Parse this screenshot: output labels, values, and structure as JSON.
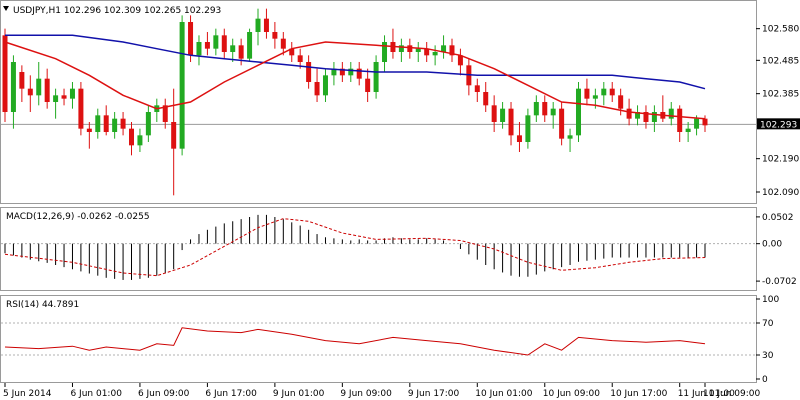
{
  "header": {
    "symbol_line": "USDJPY,H1  102.296 102.309 102.265 102.293",
    "dropdown_icon": "triangle-down-icon"
  },
  "colors": {
    "bull": "#22aa22",
    "bear": "#dd1111",
    "ma_fast": "#dd1111",
    "ma_slow": "#1111aa",
    "macd_signal": "#cc0000",
    "rsi_line": "#cc0000",
    "grid": "#9a9a9a",
    "last_price_bg": "#000000"
  },
  "price_axis": {
    "ticks": [
      "102.580",
      "102.485",
      "102.385",
      "102.190",
      "102.090"
    ],
    "last_price": "102.293"
  },
  "macd": {
    "label": "MACD(12,26,9) -0.0262 -0.0255",
    "ticks": [
      "0.0502",
      "0.00",
      "-0.0702"
    ]
  },
  "rsi": {
    "label": "RSI(14) 44.7891",
    "ticks": [
      "100",
      "70",
      "30",
      "0"
    ]
  },
  "time_axis": {
    "labels": [
      "5 Jun 2014",
      "6 Jun 01:00",
      "6 Jun 09:00",
      "6 Jun 17:00",
      "9 Jun 01:00",
      "9 Jun 09:00",
      "9 Jun 17:00",
      "10 Jun 01:00",
      "10 Jun 09:00",
      "10 Jun 17:00",
      "11 Jun 01:00",
      "11 Jun 09:00"
    ]
  },
  "chart_data": {
    "type": "candlestick",
    "symbol": "USDJPY",
    "timeframe": "H1",
    "last": 102.293,
    "ylim": [
      102.06,
      102.66
    ],
    "candles": [
      {
        "o": 102.56,
        "h": 102.58,
        "l": 102.3,
        "c": 102.33
      },
      {
        "o": 102.33,
        "h": 102.5,
        "l": 102.28,
        "c": 102.48
      },
      {
        "o": 102.45,
        "h": 102.47,
        "l": 102.36,
        "c": 102.4
      },
      {
        "o": 102.4,
        "h": 102.44,
        "l": 102.33,
        "c": 102.38
      },
      {
        "o": 102.38,
        "h": 102.48,
        "l": 102.35,
        "c": 102.43
      },
      {
        "o": 102.43,
        "h": 102.46,
        "l": 102.34,
        "c": 102.36
      },
      {
        "o": 102.36,
        "h": 102.4,
        "l": 102.31,
        "c": 102.38
      },
      {
        "o": 102.38,
        "h": 102.4,
        "l": 102.35,
        "c": 102.37
      },
      {
        "o": 102.37,
        "h": 102.42,
        "l": 102.34,
        "c": 102.4
      },
      {
        "o": 102.4,
        "h": 102.42,
        "l": 102.26,
        "c": 102.28
      },
      {
        "o": 102.28,
        "h": 102.3,
        "l": 102.22,
        "c": 102.27
      },
      {
        "o": 102.27,
        "h": 102.34,
        "l": 102.25,
        "c": 102.32
      },
      {
        "o": 102.32,
        "h": 102.35,
        "l": 102.26,
        "c": 102.27
      },
      {
        "o": 102.27,
        "h": 102.33,
        "l": 102.25,
        "c": 102.31
      },
      {
        "o": 102.31,
        "h": 102.33,
        "l": 102.26,
        "c": 102.28
      },
      {
        "o": 102.28,
        "h": 102.3,
        "l": 102.2,
        "c": 102.23
      },
      {
        "o": 102.23,
        "h": 102.28,
        "l": 102.21,
        "c": 102.26
      },
      {
        "o": 102.26,
        "h": 102.35,
        "l": 102.24,
        "c": 102.33
      },
      {
        "o": 102.33,
        "h": 102.37,
        "l": 102.3,
        "c": 102.35
      },
      {
        "o": 102.35,
        "h": 102.37,
        "l": 102.28,
        "c": 102.3
      },
      {
        "o": 102.3,
        "h": 102.4,
        "l": 102.08,
        "c": 102.22
      },
      {
        "o": 102.22,
        "h": 102.62,
        "l": 102.2,
        "c": 102.6
      },
      {
        "o": 102.6,
        "h": 102.62,
        "l": 102.48,
        "c": 102.5
      },
      {
        "o": 102.5,
        "h": 102.56,
        "l": 102.47,
        "c": 102.54
      },
      {
        "o": 102.54,
        "h": 102.57,
        "l": 102.5,
        "c": 102.52
      },
      {
        "o": 102.52,
        "h": 102.58,
        "l": 102.5,
        "c": 102.56
      },
      {
        "o": 102.56,
        "h": 102.58,
        "l": 102.49,
        "c": 102.51
      },
      {
        "o": 102.51,
        "h": 102.55,
        "l": 102.48,
        "c": 102.53
      },
      {
        "o": 102.53,
        "h": 102.55,
        "l": 102.47,
        "c": 102.49
      },
      {
        "o": 102.49,
        "h": 102.58,
        "l": 102.48,
        "c": 102.57
      },
      {
        "o": 102.57,
        "h": 102.64,
        "l": 102.53,
        "c": 102.61
      },
      {
        "o": 102.61,
        "h": 102.64,
        "l": 102.55,
        "c": 102.57
      },
      {
        "o": 102.57,
        "h": 102.6,
        "l": 102.52,
        "c": 102.55
      },
      {
        "o": 102.55,
        "h": 102.57,
        "l": 102.5,
        "c": 102.52
      },
      {
        "o": 102.52,
        "h": 102.54,
        "l": 102.48,
        "c": 102.5
      },
      {
        "o": 102.5,
        "h": 102.52,
        "l": 102.46,
        "c": 102.48
      },
      {
        "o": 102.48,
        "h": 102.5,
        "l": 102.4,
        "c": 102.42
      },
      {
        "o": 102.42,
        "h": 102.46,
        "l": 102.36,
        "c": 102.38
      },
      {
        "o": 102.38,
        "h": 102.46,
        "l": 102.36,
        "c": 102.44
      },
      {
        "o": 102.44,
        "h": 102.48,
        "l": 102.41,
        "c": 102.46
      },
      {
        "o": 102.46,
        "h": 102.48,
        "l": 102.42,
        "c": 102.44
      },
      {
        "o": 102.44,
        "h": 102.48,
        "l": 102.42,
        "c": 102.46
      },
      {
        "o": 102.46,
        "h": 102.48,
        "l": 102.41,
        "c": 102.43
      },
      {
        "o": 102.43,
        "h": 102.46,
        "l": 102.36,
        "c": 102.39
      },
      {
        "o": 102.39,
        "h": 102.5,
        "l": 102.37,
        "c": 102.48
      },
      {
        "o": 102.48,
        "h": 102.56,
        "l": 102.45,
        "c": 102.54
      },
      {
        "o": 102.54,
        "h": 102.58,
        "l": 102.49,
        "c": 102.51
      },
      {
        "o": 102.51,
        "h": 102.55,
        "l": 102.48,
        "c": 102.53
      },
      {
        "o": 102.53,
        "h": 102.55,
        "l": 102.49,
        "c": 102.51
      },
      {
        "o": 102.51,
        "h": 102.54,
        "l": 102.48,
        "c": 102.52
      },
      {
        "o": 102.52,
        "h": 102.54,
        "l": 102.48,
        "c": 102.5
      },
      {
        "o": 102.5,
        "h": 102.53,
        "l": 102.47,
        "c": 102.51
      },
      {
        "o": 102.51,
        "h": 102.56,
        "l": 102.49,
        "c": 102.53
      },
      {
        "o": 102.53,
        "h": 102.55,
        "l": 102.48,
        "c": 102.5
      },
      {
        "o": 102.5,
        "h": 102.52,
        "l": 102.44,
        "c": 102.47
      },
      {
        "o": 102.47,
        "h": 102.49,
        "l": 102.38,
        "c": 102.41
      },
      {
        "o": 102.41,
        "h": 102.43,
        "l": 102.36,
        "c": 102.39
      },
      {
        "o": 102.39,
        "h": 102.42,
        "l": 102.33,
        "c": 102.35
      },
      {
        "o": 102.35,
        "h": 102.38,
        "l": 102.27,
        "c": 102.3
      },
      {
        "o": 102.3,
        "h": 102.36,
        "l": 102.28,
        "c": 102.34
      },
      {
        "o": 102.34,
        "h": 102.36,
        "l": 102.23,
        "c": 102.26
      },
      {
        "o": 102.26,
        "h": 102.3,
        "l": 102.21,
        "c": 102.24
      },
      {
        "o": 102.24,
        "h": 102.34,
        "l": 102.22,
        "c": 102.32
      },
      {
        "o": 102.32,
        "h": 102.38,
        "l": 102.3,
        "c": 102.36
      },
      {
        "o": 102.36,
        "h": 102.38,
        "l": 102.3,
        "c": 102.32
      },
      {
        "o": 102.32,
        "h": 102.36,
        "l": 102.28,
        "c": 102.34
      },
      {
        "o": 102.34,
        "h": 102.36,
        "l": 102.23,
        "c": 102.25
      },
      {
        "o": 102.25,
        "h": 102.28,
        "l": 102.21,
        "c": 102.26
      },
      {
        "o": 102.26,
        "h": 102.42,
        "l": 102.24,
        "c": 102.4
      },
      {
        "o": 102.4,
        "h": 102.43,
        "l": 102.35,
        "c": 102.37
      },
      {
        "o": 102.37,
        "h": 102.4,
        "l": 102.34,
        "c": 102.38
      },
      {
        "o": 102.38,
        "h": 102.42,
        "l": 102.35,
        "c": 102.4
      },
      {
        "o": 102.4,
        "h": 102.42,
        "l": 102.36,
        "c": 102.38
      },
      {
        "o": 102.38,
        "h": 102.4,
        "l": 102.32,
        "c": 102.34
      },
      {
        "o": 102.34,
        "h": 102.37,
        "l": 102.29,
        "c": 102.31
      },
      {
        "o": 102.31,
        "h": 102.35,
        "l": 102.29,
        "c": 102.33
      },
      {
        "o": 102.33,
        "h": 102.35,
        "l": 102.28,
        "c": 102.3
      },
      {
        "o": 102.3,
        "h": 102.35,
        "l": 102.27,
        "c": 102.33
      },
      {
        "o": 102.33,
        "h": 102.38,
        "l": 102.3,
        "c": 102.31
      },
      {
        "o": 102.31,
        "h": 102.36,
        "l": 102.29,
        "c": 102.34
      },
      {
        "o": 102.34,
        "h": 102.35,
        "l": 102.24,
        "c": 102.27
      },
      {
        "o": 102.27,
        "h": 102.3,
        "l": 102.24,
        "c": 102.28
      },
      {
        "o": 102.28,
        "h": 102.32,
        "l": 102.26,
        "c": 102.31
      },
      {
        "o": 102.31,
        "h": 102.32,
        "l": 102.27,
        "c": 102.29
      }
    ],
    "ma_fast": [
      [
        0,
        102.54
      ],
      [
        6,
        102.49
      ],
      [
        10,
        102.44
      ],
      [
        14,
        102.38
      ],
      [
        18,
        102.34
      ],
      [
        22,
        102.36
      ],
      [
        26,
        102.42
      ],
      [
        30,
        102.47
      ],
      [
        34,
        102.52
      ],
      [
        38,
        102.54
      ],
      [
        44,
        102.53
      ],
      [
        50,
        102.52
      ],
      [
        54,
        102.5
      ],
      [
        58,
        102.46
      ],
      [
        62,
        102.41
      ],
      [
        66,
        102.36
      ],
      [
        70,
        102.35
      ],
      [
        74,
        102.33
      ],
      [
        78,
        102.32
      ],
      [
        83,
        102.31
      ]
    ],
    "ma_slow": [
      [
        0,
        102.56
      ],
      [
        8,
        102.56
      ],
      [
        14,
        102.54
      ],
      [
        18,
        102.52
      ],
      [
        22,
        102.5
      ],
      [
        26,
        102.49
      ],
      [
        30,
        102.48
      ],
      [
        34,
        102.47
      ],
      [
        38,
        102.46
      ],
      [
        44,
        102.45
      ],
      [
        50,
        102.45
      ],
      [
        56,
        102.44
      ],
      [
        62,
        102.44
      ],
      [
        68,
        102.44
      ],
      [
        72,
        102.44
      ],
      [
        76,
        102.43
      ],
      [
        80,
        102.42
      ],
      [
        83,
        102.4
      ]
    ],
    "macd": {
      "ylim": [
        -0.085,
        0.065
      ],
      "histogram": [
        -0.018,
        -0.022,
        -0.026,
        -0.03,
        -0.033,
        -0.036,
        -0.04,
        -0.044,
        -0.048,
        -0.052,
        -0.056,
        -0.06,
        -0.064,
        -0.066,
        -0.068,
        -0.068,
        -0.066,
        -0.064,
        -0.06,
        -0.056,
        -0.048,
        -0.012,
        0.008,
        0.018,
        0.026,
        0.032,
        0.038,
        0.042,
        0.046,
        0.05,
        0.054,
        0.054,
        0.05,
        0.046,
        0.04,
        0.034,
        0.026,
        0.018,
        0.012,
        0.01,
        0.008,
        0.006,
        0.008,
        0.006,
        0.006,
        0.01,
        0.012,
        0.01,
        0.008,
        0.008,
        0.01,
        0.008,
        0.006,
        0.0,
        -0.01,
        -0.02,
        -0.03,
        -0.04,
        -0.048,
        -0.054,
        -0.06,
        -0.062,
        -0.062,
        -0.058,
        -0.052,
        -0.048,
        -0.044,
        -0.04,
        -0.034,
        -0.032,
        -0.03,
        -0.028,
        -0.026,
        -0.026,
        -0.026,
        -0.026,
        -0.026,
        -0.026,
        -0.026,
        -0.026,
        -0.026,
        -0.026,
        -0.026,
        -0.026
      ],
      "signal": [
        [
          0,
          -0.02
        ],
        [
          8,
          -0.035
        ],
        [
          14,
          -0.055
        ],
        [
          18,
          -0.06
        ],
        [
          22,
          -0.04
        ],
        [
          26,
          -0.005
        ],
        [
          30,
          0.03
        ],
        [
          33,
          0.047
        ],
        [
          36,
          0.042
        ],
        [
          40,
          0.02
        ],
        [
          44,
          0.008
        ],
        [
          50,
          0.01
        ],
        [
          54,
          0.006
        ],
        [
          58,
          -0.01
        ],
        [
          62,
          -0.035
        ],
        [
          66,
          -0.05
        ],
        [
          70,
          -0.045
        ],
        [
          74,
          -0.035
        ],
        [
          78,
          -0.028
        ],
        [
          83,
          -0.026
        ]
      ]
    },
    "rsi": {
      "ylim": [
        0,
        100
      ],
      "levels": [
        70,
        30
      ],
      "line": [
        [
          0,
          40
        ],
        [
          4,
          38
        ],
        [
          8,
          41
        ],
        [
          10,
          36
        ],
        [
          12,
          40
        ],
        [
          16,
          36
        ],
        [
          18,
          44
        ],
        [
          20,
          42
        ],
        [
          21,
          64
        ],
        [
          24,
          60
        ],
        [
          28,
          58
        ],
        [
          30,
          62
        ],
        [
          34,
          56
        ],
        [
          38,
          48
        ],
        [
          42,
          44
        ],
        [
          46,
          52
        ],
        [
          50,
          48
        ],
        [
          54,
          44
        ],
        [
          58,
          36
        ],
        [
          62,
          30
        ],
        [
          64,
          44
        ],
        [
          66,
          36
        ],
        [
          68,
          52
        ],
        [
          72,
          48
        ],
        [
          76,
          46
        ],
        [
          80,
          48
        ],
        [
          83,
          44
        ]
      ]
    }
  }
}
